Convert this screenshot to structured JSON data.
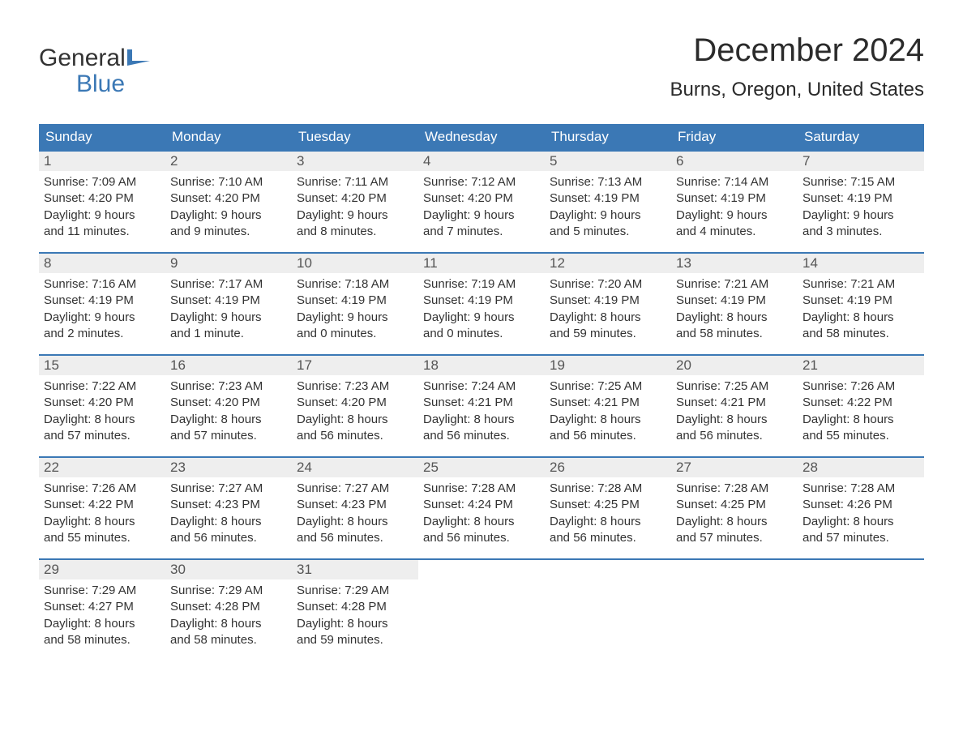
{
  "brand": {
    "word1": "General",
    "word2": "Blue",
    "flag_color": "#3b78b5",
    "text_color_top": "#333333",
    "text_color_bottom": "#3b78b5"
  },
  "title": "December 2024",
  "location": "Burns, Oregon, United States",
  "colors": {
    "header_bg": "#3b78b5",
    "header_text": "#ffffff",
    "row_border": "#3b78b5",
    "daynum_bg": "#eeeeee",
    "body_text": "#333333",
    "page_bg": "#ffffff"
  },
  "typography": {
    "title_fontsize": 40,
    "location_fontsize": 24,
    "weekday_fontsize": 17,
    "daynum_fontsize": 17,
    "body_fontsize": 15
  },
  "calendar": {
    "type": "table",
    "weekdays": [
      "Sunday",
      "Monday",
      "Tuesday",
      "Wednesday",
      "Thursday",
      "Friday",
      "Saturday"
    ],
    "weeks": [
      [
        {
          "n": "1",
          "sunrise": "Sunrise: 7:09 AM",
          "sunset": "Sunset: 4:20 PM",
          "d1": "Daylight: 9 hours",
          "d2": "and 11 minutes."
        },
        {
          "n": "2",
          "sunrise": "Sunrise: 7:10 AM",
          "sunset": "Sunset: 4:20 PM",
          "d1": "Daylight: 9 hours",
          "d2": "and 9 minutes."
        },
        {
          "n": "3",
          "sunrise": "Sunrise: 7:11 AM",
          "sunset": "Sunset: 4:20 PM",
          "d1": "Daylight: 9 hours",
          "d2": "and 8 minutes."
        },
        {
          "n": "4",
          "sunrise": "Sunrise: 7:12 AM",
          "sunset": "Sunset: 4:20 PM",
          "d1": "Daylight: 9 hours",
          "d2": "and 7 minutes."
        },
        {
          "n": "5",
          "sunrise": "Sunrise: 7:13 AM",
          "sunset": "Sunset: 4:19 PM",
          "d1": "Daylight: 9 hours",
          "d2": "and 5 minutes."
        },
        {
          "n": "6",
          "sunrise": "Sunrise: 7:14 AM",
          "sunset": "Sunset: 4:19 PM",
          "d1": "Daylight: 9 hours",
          "d2": "and 4 minutes."
        },
        {
          "n": "7",
          "sunrise": "Sunrise: 7:15 AM",
          "sunset": "Sunset: 4:19 PM",
          "d1": "Daylight: 9 hours",
          "d2": "and 3 minutes."
        }
      ],
      [
        {
          "n": "8",
          "sunrise": "Sunrise: 7:16 AM",
          "sunset": "Sunset: 4:19 PM",
          "d1": "Daylight: 9 hours",
          "d2": "and 2 minutes."
        },
        {
          "n": "9",
          "sunrise": "Sunrise: 7:17 AM",
          "sunset": "Sunset: 4:19 PM",
          "d1": "Daylight: 9 hours",
          "d2": "and 1 minute."
        },
        {
          "n": "10",
          "sunrise": "Sunrise: 7:18 AM",
          "sunset": "Sunset: 4:19 PM",
          "d1": "Daylight: 9 hours",
          "d2": "and 0 minutes."
        },
        {
          "n": "11",
          "sunrise": "Sunrise: 7:19 AM",
          "sunset": "Sunset: 4:19 PM",
          "d1": "Daylight: 9 hours",
          "d2": "and 0 minutes."
        },
        {
          "n": "12",
          "sunrise": "Sunrise: 7:20 AM",
          "sunset": "Sunset: 4:19 PM",
          "d1": "Daylight: 8 hours",
          "d2": "and 59 minutes."
        },
        {
          "n": "13",
          "sunrise": "Sunrise: 7:21 AM",
          "sunset": "Sunset: 4:19 PM",
          "d1": "Daylight: 8 hours",
          "d2": "and 58 minutes."
        },
        {
          "n": "14",
          "sunrise": "Sunrise: 7:21 AM",
          "sunset": "Sunset: 4:19 PM",
          "d1": "Daylight: 8 hours",
          "d2": "and 58 minutes."
        }
      ],
      [
        {
          "n": "15",
          "sunrise": "Sunrise: 7:22 AM",
          "sunset": "Sunset: 4:20 PM",
          "d1": "Daylight: 8 hours",
          "d2": "and 57 minutes."
        },
        {
          "n": "16",
          "sunrise": "Sunrise: 7:23 AM",
          "sunset": "Sunset: 4:20 PM",
          "d1": "Daylight: 8 hours",
          "d2": "and 57 minutes."
        },
        {
          "n": "17",
          "sunrise": "Sunrise: 7:23 AM",
          "sunset": "Sunset: 4:20 PM",
          "d1": "Daylight: 8 hours",
          "d2": "and 56 minutes."
        },
        {
          "n": "18",
          "sunrise": "Sunrise: 7:24 AM",
          "sunset": "Sunset: 4:21 PM",
          "d1": "Daylight: 8 hours",
          "d2": "and 56 minutes."
        },
        {
          "n": "19",
          "sunrise": "Sunrise: 7:25 AM",
          "sunset": "Sunset: 4:21 PM",
          "d1": "Daylight: 8 hours",
          "d2": "and 56 minutes."
        },
        {
          "n": "20",
          "sunrise": "Sunrise: 7:25 AM",
          "sunset": "Sunset: 4:21 PM",
          "d1": "Daylight: 8 hours",
          "d2": "and 56 minutes."
        },
        {
          "n": "21",
          "sunrise": "Sunrise: 7:26 AM",
          "sunset": "Sunset: 4:22 PM",
          "d1": "Daylight: 8 hours",
          "d2": "and 55 minutes."
        }
      ],
      [
        {
          "n": "22",
          "sunrise": "Sunrise: 7:26 AM",
          "sunset": "Sunset: 4:22 PM",
          "d1": "Daylight: 8 hours",
          "d2": "and 55 minutes."
        },
        {
          "n": "23",
          "sunrise": "Sunrise: 7:27 AM",
          "sunset": "Sunset: 4:23 PM",
          "d1": "Daylight: 8 hours",
          "d2": "and 56 minutes."
        },
        {
          "n": "24",
          "sunrise": "Sunrise: 7:27 AM",
          "sunset": "Sunset: 4:23 PM",
          "d1": "Daylight: 8 hours",
          "d2": "and 56 minutes."
        },
        {
          "n": "25",
          "sunrise": "Sunrise: 7:28 AM",
          "sunset": "Sunset: 4:24 PM",
          "d1": "Daylight: 8 hours",
          "d2": "and 56 minutes."
        },
        {
          "n": "26",
          "sunrise": "Sunrise: 7:28 AM",
          "sunset": "Sunset: 4:25 PM",
          "d1": "Daylight: 8 hours",
          "d2": "and 56 minutes."
        },
        {
          "n": "27",
          "sunrise": "Sunrise: 7:28 AM",
          "sunset": "Sunset: 4:25 PM",
          "d1": "Daylight: 8 hours",
          "d2": "and 57 minutes."
        },
        {
          "n": "28",
          "sunrise": "Sunrise: 7:28 AM",
          "sunset": "Sunset: 4:26 PM",
          "d1": "Daylight: 8 hours",
          "d2": "and 57 minutes."
        }
      ],
      [
        {
          "n": "29",
          "sunrise": "Sunrise: 7:29 AM",
          "sunset": "Sunset: 4:27 PM",
          "d1": "Daylight: 8 hours",
          "d2": "and 58 minutes."
        },
        {
          "n": "30",
          "sunrise": "Sunrise: 7:29 AM",
          "sunset": "Sunset: 4:28 PM",
          "d1": "Daylight: 8 hours",
          "d2": "and 58 minutes."
        },
        {
          "n": "31",
          "sunrise": "Sunrise: 7:29 AM",
          "sunset": "Sunset: 4:28 PM",
          "d1": "Daylight: 8 hours",
          "d2": "and 59 minutes."
        },
        {
          "empty": true
        },
        {
          "empty": true
        },
        {
          "empty": true
        },
        {
          "empty": true
        }
      ]
    ]
  }
}
